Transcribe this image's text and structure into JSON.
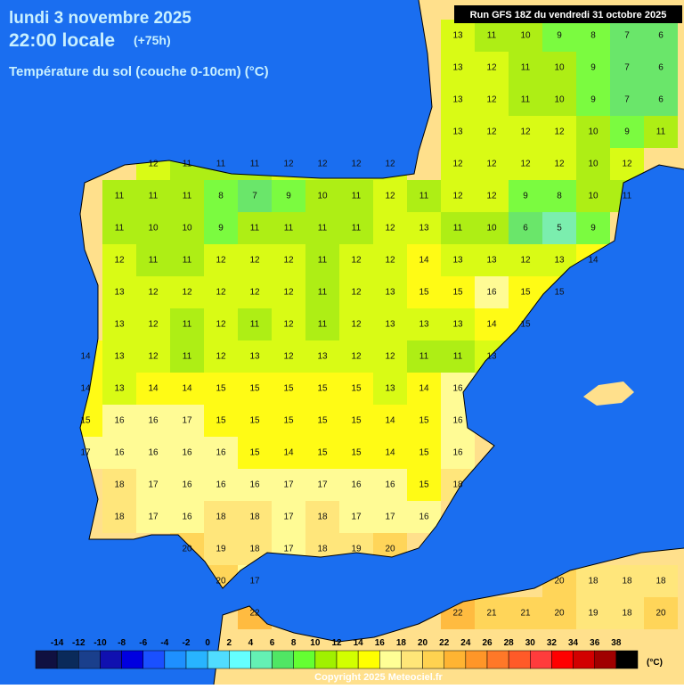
{
  "header": {
    "date": "lundi 3 novembre 2025",
    "time": "22:00 locale",
    "lead": "(+75h)",
    "parameter": "Température du sol (couche 0-10cm) (°C)",
    "run": "Run GFS 18Z du vendredi 31 octobre 2025"
  },
  "grid": {
    "rows": [
      [
        null,
        null,
        null,
        null,
        null,
        null,
        null,
        null,
        null,
        null,
        null,
        null,
        null,
        13,
        11,
        10,
        9,
        8,
        7,
        6
      ],
      [
        null,
        null,
        null,
        null,
        null,
        null,
        null,
        null,
        null,
        null,
        null,
        null,
        null,
        13,
        12,
        11,
        10,
        9,
        7,
        6
      ],
      [
        null,
        null,
        null,
        null,
        null,
        null,
        null,
        null,
        null,
        null,
        null,
        null,
        null,
        13,
        12,
        11,
        10,
        9,
        7,
        6
      ],
      [
        null,
        null,
        null,
        null,
        null,
        null,
        null,
        null,
        null,
        null,
        null,
        null,
        null,
        13,
        12,
        12,
        12,
        10,
        9,
        11
      ],
      [
        null,
        null,
        null,
        null,
        12,
        11,
        11,
        11,
        12,
        12,
        12,
        12,
        null,
        12,
        12,
        12,
        12,
        10,
        12,
        null
      ],
      [
        null,
        null,
        null,
        11,
        11,
        11,
        8,
        7,
        9,
        10,
        11,
        12,
        11,
        12,
        12,
        9,
        8,
        10,
        11,
        null
      ],
      [
        null,
        null,
        null,
        11,
        10,
        10,
        9,
        11,
        11,
        11,
        11,
        12,
        13,
        11,
        10,
        6,
        5,
        9,
        null,
        null
      ],
      [
        null,
        null,
        null,
        12,
        11,
        11,
        12,
        12,
        12,
        11,
        12,
        12,
        14,
        13,
        13,
        12,
        13,
        14,
        null,
        null
      ],
      [
        null,
        null,
        null,
        13,
        12,
        12,
        12,
        12,
        12,
        11,
        12,
        13,
        15,
        15,
        16,
        15,
        15,
        null,
        null,
        null
      ],
      [
        null,
        null,
        null,
        13,
        12,
        11,
        12,
        11,
        12,
        11,
        12,
        13,
        13,
        13,
        14,
        15,
        null,
        null,
        null,
        null
      ],
      [
        null,
        null,
        14,
        13,
        12,
        11,
        12,
        13,
        12,
        13,
        12,
        12,
        11,
        11,
        13,
        null,
        null,
        null,
        null,
        null
      ],
      [
        null,
        null,
        14,
        13,
        14,
        14,
        15,
        15,
        15,
        15,
        15,
        13,
        14,
        16,
        null,
        null,
        null,
        null,
        null,
        null
      ],
      [
        null,
        null,
        15,
        16,
        16,
        17,
        15,
        15,
        15,
        15,
        15,
        14,
        15,
        16,
        null,
        null,
        null,
        null,
        null,
        null
      ],
      [
        null,
        null,
        17,
        16,
        16,
        16,
        16,
        15,
        14,
        15,
        15,
        14,
        15,
        16,
        null,
        null,
        null,
        null,
        null,
        null
      ],
      [
        null,
        null,
        null,
        18,
        17,
        16,
        16,
        16,
        17,
        17,
        16,
        16,
        15,
        18,
        null,
        null,
        null,
        null,
        null,
        null
      ],
      [
        null,
        null,
        null,
        18,
        17,
        16,
        18,
        18,
        17,
        18,
        17,
        17,
        16,
        null,
        null,
        null,
        null,
        null,
        null,
        null
      ],
      [
        null,
        null,
        null,
        null,
        null,
        20,
        19,
        18,
        17,
        18,
        19,
        20,
        null,
        null,
        null,
        null,
        null,
        null,
        null,
        null
      ],
      [
        null,
        null,
        null,
        null,
        null,
        null,
        20,
        17,
        null,
        null,
        null,
        null,
        null,
        null,
        null,
        null,
        20,
        18,
        18,
        18
      ],
      [
        null,
        null,
        null,
        null,
        null,
        null,
        null,
        22,
        null,
        null,
        null,
        null,
        null,
        22,
        21,
        21,
        20,
        19,
        18,
        20
      ]
    ]
  },
  "colorbar": {
    "ticks": [
      -14,
      -12,
      -10,
      -8,
      -6,
      -4,
      -2,
      0,
      2,
      4,
      6,
      8,
      10,
      12,
      14,
      16,
      18,
      20,
      22,
      24,
      26,
      28,
      30,
      32,
      34,
      36,
      38
    ],
    "colors": [
      "#101040",
      "#0a2a5a",
      "#1a3f8c",
      "#1010b0",
      "#0000e0",
      "#1a50ff",
      "#1e90ff",
      "#28b4ff",
      "#50dcff",
      "#64ffff",
      "#64f0b4",
      "#50e664",
      "#64ff32",
      "#a0f000",
      "#d2ff00",
      "#ffff00",
      "#ffff96",
      "#ffe678",
      "#ffd250",
      "#ffb432",
      "#ff9628",
      "#ff7828",
      "#ff5a28",
      "#ff3c3c",
      "#ff0000",
      "#d20000",
      "#a00000",
      "#000000"
    ],
    "unit": "(°C)"
  },
  "footer": "Copyright 2025 Meteociel.fr"
}
